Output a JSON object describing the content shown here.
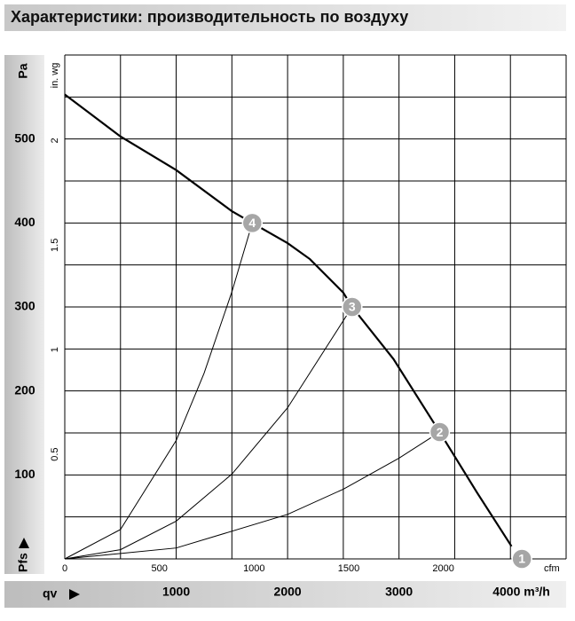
{
  "chart_data": {
    "type": "line",
    "title": "Характеристики: производительность по воздуху",
    "xlabel": "qv",
    "ylabel": "Pfs",
    "y_unit": "Pa",
    "x2label": "cfm",
    "y2label": "in. wg",
    "xlim": [
      0,
      4500
    ],
    "ylim": [
      0,
      600
    ],
    "xticks": [
      1000,
      2000,
      3000,
      {
        "value": 4000,
        "label": "4000 m³/h"
      }
    ],
    "yticks": [
      100,
      200,
      300,
      400,
      500
    ],
    "x_gridlines": [
      0,
      500,
      1000,
      1500,
      2000,
      2500,
      3000,
      3500,
      4000,
      4500
    ],
    "y_gridlines": [
      0,
      50,
      100,
      150,
      200,
      250,
      300,
      350,
      400,
      450,
      500,
      550,
      600
    ],
    "x2lim": [
      0,
      2648.6
    ],
    "x2ticks": [
      0,
      500,
      1000,
      1500,
      2000
    ],
    "y2lim": [
      0,
      2.409
    ],
    "y2ticks": [
      0.5,
      1,
      1.5,
      2
    ],
    "series": [
      {
        "color": "#000000",
        "x": [
          0,
          500,
          1000,
          1500,
          1683,
          2000,
          2200,
          2500,
          2579,
          2950,
          3365,
          3700,
          4010
        ],
        "values": [
          553,
          503,
          463,
          414,
          400,
          376,
          357,
          317,
          300,
          238,
          151,
          79,
          15
        ]
      },
      {
        "color": "#000000",
        "x": [
          0,
          500,
          1000,
          1250,
          1500,
          1683
        ],
        "values": [
          0,
          35,
          141,
          221,
          318,
          400
        ]
      },
      {
        "color": "#000000",
        "x": [
          0,
          500,
          1000,
          1500,
          2000,
          2579
        ],
        "values": [
          0,
          11,
          45,
          101,
          180,
          300
        ]
      },
      {
        "color": "#000000",
        "x": [
          0,
          1000,
          2000,
          2500,
          3000,
          3365
        ],
        "values": [
          0,
          13,
          53,
          83,
          120,
          151
        ]
      }
    ],
    "points": [
      {
        "label": "1",
        "x": 4103,
        "y": 0
      },
      {
        "label": "2",
        "x": 3365,
        "y": 151
      },
      {
        "label": "3",
        "x": 2579,
        "y": 300
      },
      {
        "label": "4",
        "x": 1683,
        "y": 400
      }
    ]
  }
}
